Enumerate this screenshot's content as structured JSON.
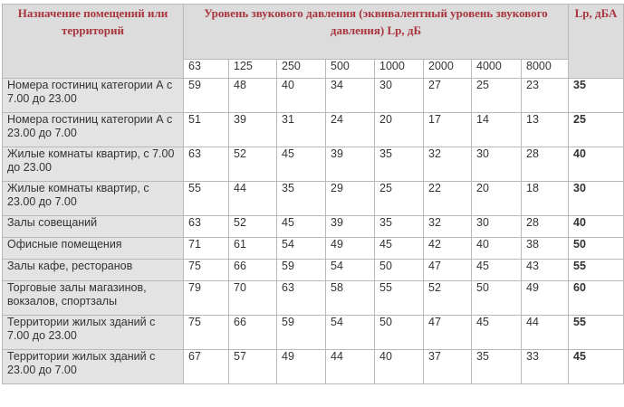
{
  "header": {
    "purpose": "Назначение помещений или территорий",
    "pressure": "Уровень звукового давления (эквивалентный уровень звукового давления) Lp, дБ",
    "lp": "Lp, дБА"
  },
  "frequencies": [
    "63",
    "125",
    "250",
    "500",
    "1000",
    "2000",
    "4000",
    "8000"
  ],
  "rows": [
    {
      "name": "Номера гостиниц категории А с 7.00 до 23.00",
      "values": [
        "59",
        "48",
        "40",
        "34",
        "30",
        "27",
        "25",
        "23"
      ],
      "lp": "35"
    },
    {
      "name": "Номера гостиниц категории А с 23.00 до 7.00",
      "values": [
        "51",
        "39",
        "31",
        "24",
        "20",
        "17",
        "14",
        "13"
      ],
      "lp": "25"
    },
    {
      "name": "Жилые комнаты квартир, с 7.00 до 23.00",
      "values": [
        "63",
        "52",
        "45",
        "39",
        "35",
        "32",
        "30",
        "28"
      ],
      "lp": "40"
    },
    {
      "name": "Жилые комнаты квартир, с 23.00 до 7.00",
      "values": [
        "55",
        "44",
        "35",
        "29",
        "25",
        "22",
        "20",
        "18"
      ],
      "lp": "30"
    },
    {
      "name": "Залы совещаний",
      "values": [
        "63",
        "52",
        "45",
        "39",
        "35",
        "32",
        "30",
        "28"
      ],
      "lp": "40"
    },
    {
      "name": "Офисные помещения",
      "values": [
        "71",
        "61",
        "54",
        "49",
        "45",
        "42",
        "40",
        "38"
      ],
      "lp": "50"
    },
    {
      "name": "Залы кафе, ресторанов",
      "values": [
        "75",
        "66",
        "59",
        "54",
        "50",
        "47",
        "45",
        "43"
      ],
      "lp": "55"
    },
    {
      "name": "Торговые залы магазинов, вокзалов, спортзалы",
      "values": [
        "79",
        "70",
        "63",
        "58",
        "55",
        "52",
        "50",
        "49"
      ],
      "lp": "60"
    },
    {
      "name": "Территории жилых зданий с 7.00 до 23.00",
      "values": [
        "75",
        "66",
        "59",
        "54",
        "50",
        "47",
        "45",
        "44"
      ],
      "lp": "55"
    },
    {
      "name": "Территории жилых зданий с 23.00 до 7.00",
      "values": [
        "67",
        "57",
        "49",
        "44",
        "40",
        "37",
        "35",
        "33"
      ],
      "lp": "45"
    }
  ]
}
